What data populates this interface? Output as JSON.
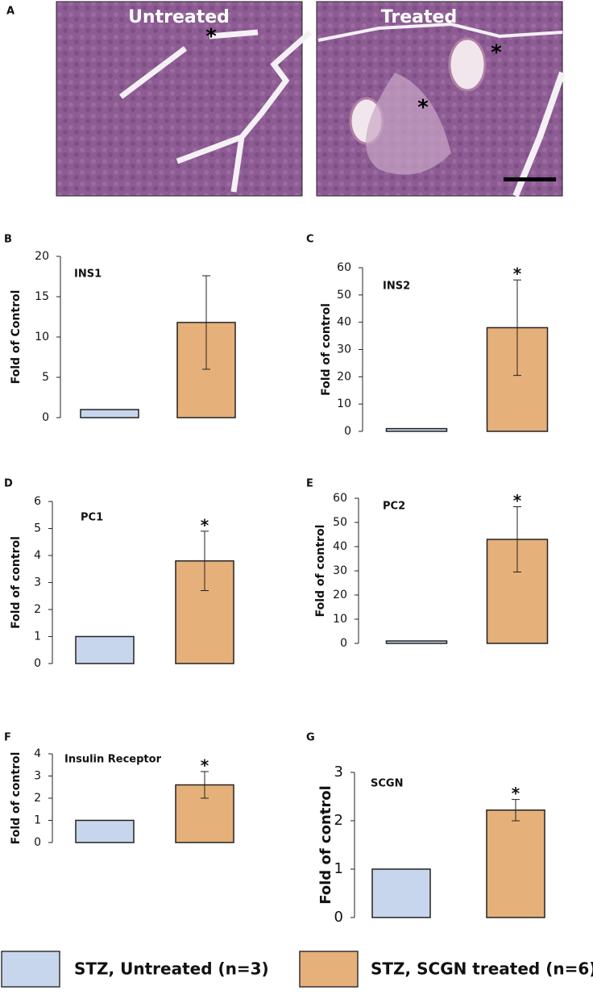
{
  "panel_a": {
    "label": "A",
    "images": [
      {
        "label": "Untreated",
        "marks": [
          "*"
        ]
      },
      {
        "label": "Treated",
        "marks": [
          "*",
          "*"
        ]
      }
    ]
  },
  "chart_data": [
    {
      "type": "bar",
      "panel": "B",
      "label": "INS1",
      "ylabel": "Fold of Control",
      "categories": [
        null,
        null
      ],
      "values": [
        1,
        11.8
      ],
      "errors": [
        null,
        5.8
      ],
      "annotations": [
        null,
        null
      ],
      "colors": [
        "#c7d6ec",
        "#e6b07a"
      ],
      "ylim": [
        0,
        20
      ],
      "yticks": [
        0,
        5,
        10,
        15,
        20
      ]
    },
    {
      "type": "bar",
      "panel": "C",
      "label": "INS2",
      "ylabel": "Fold of control",
      "categories": [
        null,
        null
      ],
      "values": [
        1,
        38
      ],
      "errors": [
        null,
        17.5
      ],
      "annotations": [
        null,
        "*"
      ],
      "colors": [
        "#c7d6ec",
        "#e6b07a"
      ],
      "ylim": [
        0,
        60
      ],
      "yticks": [
        0,
        10,
        20,
        30,
        40,
        50,
        60
      ]
    },
    {
      "type": "bar",
      "panel": "D",
      "label": "PC1",
      "ylabel": "Fold of control",
      "categories": [
        null,
        null
      ],
      "values": [
        1,
        3.8
      ],
      "errors": [
        null,
        1.1
      ],
      "annotations": [
        null,
        "*"
      ],
      "colors": [
        "#c7d6ec",
        "#e6b07a"
      ],
      "ylim": [
        0,
        6
      ],
      "yticks": [
        0,
        1,
        2,
        3,
        4,
        5,
        6
      ]
    },
    {
      "type": "bar",
      "panel": "E",
      "label": "PC2",
      "ylabel": "Fold of control",
      "categories": [
        null,
        null
      ],
      "values": [
        1,
        43
      ],
      "errors": [
        null,
        13.5
      ],
      "annotations": [
        null,
        "*"
      ],
      "colors": [
        "#c7d6ec",
        "#e6b07a"
      ],
      "ylim": [
        0,
        60
      ],
      "yticks": [
        0,
        10,
        20,
        30,
        40,
        50,
        60
      ]
    },
    {
      "type": "bar",
      "panel": "F",
      "label": "Insulin Receptor",
      "ylabel": "Fold of control",
      "categories": [
        null,
        null
      ],
      "values": [
        1,
        2.6
      ],
      "errors": [
        null,
        0.6
      ],
      "annotations": [
        null,
        "*"
      ],
      "colors": [
        "#c7d6ec",
        "#e6b07a"
      ],
      "ylim": [
        0,
        4
      ],
      "yticks": [
        0,
        1,
        2,
        3,
        4
      ]
    },
    {
      "type": "bar",
      "panel": "G",
      "label": "SCGN",
      "ylabel": "Fold of control",
      "categories": [
        null,
        null
      ],
      "values": [
        1,
        2.22
      ],
      "errors": [
        null,
        0.22
      ],
      "annotations": [
        null,
        "*"
      ],
      "colors": [
        "#c7d6ec",
        "#e6b07a"
      ],
      "ylim": [
        0,
        3
      ],
      "yticks": [
        0,
        1,
        2,
        3
      ]
    }
  ],
  "legend": [
    {
      "name": "STZ, Untreated (n=3)",
      "color": "#c7d6ec"
    },
    {
      "name": "STZ, SCGN treated (n=6)",
      "color": "#e6b07a"
    }
  ]
}
